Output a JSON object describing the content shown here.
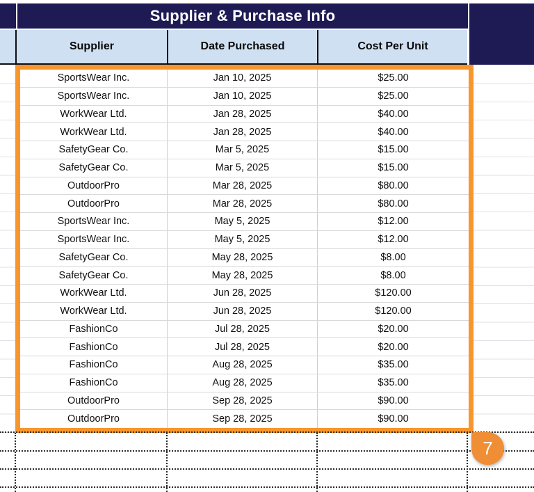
{
  "table": {
    "title": "Supplier & Purchase Info",
    "columns": [
      "Supplier",
      "Date Purchased",
      "Cost Per Unit"
    ],
    "rows": [
      [
        "SportsWear Inc.",
        "Jan 10, 2025",
        "$25.00"
      ],
      [
        "SportsWear Inc.",
        "Jan 10, 2025",
        "$25.00"
      ],
      [
        "WorkWear Ltd.",
        "Jan 28, 2025",
        "$40.00"
      ],
      [
        "WorkWear Ltd.",
        "Jan 28, 2025",
        "$40.00"
      ],
      [
        "SafetyGear Co.",
        "Mar 5, 2025",
        "$15.00"
      ],
      [
        "SafetyGear Co.",
        "Mar 5, 2025",
        "$15.00"
      ],
      [
        "OutdoorPro",
        "Mar 28, 2025",
        "$80.00"
      ],
      [
        "OutdoorPro",
        "Mar 28, 2025",
        "$80.00"
      ],
      [
        "SportsWear Inc.",
        "May 5, 2025",
        "$12.00"
      ],
      [
        "SportsWear Inc.",
        "May 5, 2025",
        "$12.00"
      ],
      [
        "SafetyGear Co.",
        "May 28, 2025",
        "$8.00"
      ],
      [
        "SafetyGear Co.",
        "May 28, 2025",
        "$8.00"
      ],
      [
        "WorkWear Ltd.",
        "Jun 28, 2025",
        "$120.00"
      ],
      [
        "WorkWear Ltd.",
        "Jun 28, 2025",
        "$120.00"
      ],
      [
        "FashionCo",
        "Jul 28, 2025",
        "$20.00"
      ],
      [
        "FashionCo",
        "Jul 28, 2025",
        "$20.00"
      ],
      [
        "FashionCo",
        "Aug 28, 2025",
        "$35.00"
      ],
      [
        "FashionCo",
        "Aug 28, 2025",
        "$35.00"
      ],
      [
        "OutdoorPro",
        "Sep 28, 2025",
        "$90.00"
      ],
      [
        "OutdoorPro",
        "Sep 28, 2025",
        "$90.00"
      ]
    ]
  },
  "annotation_badge": {
    "label": "7"
  },
  "colors": {
    "navy": "#1e1b54",
    "header_blue": "#cfe0f2",
    "annotation_orange": "#f8962e",
    "badge_orange": "#ef8e35",
    "gridline": "#dde1e6"
  }
}
